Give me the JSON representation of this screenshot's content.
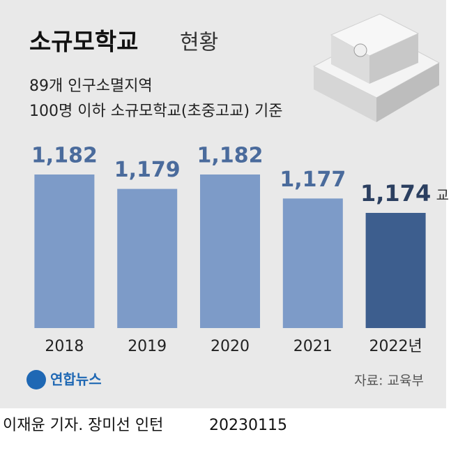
{
  "chart_data": {
    "type": "bar",
    "title": "소규모학교",
    "title_suffix": "현황",
    "subtitle": [
      "89개 인구소멸지역",
      "100명 이하 소규모학교(초중고교) 기준"
    ],
    "categories": [
      "2018",
      "2019",
      "2020",
      "2021",
      "2022년"
    ],
    "values": [
      1182,
      1179,
      1182,
      1177,
      1174
    ],
    "value_labels": [
      "1,182",
      "1,179",
      "1,182",
      "1,177",
      "1,174"
    ],
    "value_unit": "교",
    "colors": [
      "#7d9bc8",
      "#7d9bc8",
      "#7d9bc8",
      "#7d9bc8",
      "#3d5e8e"
    ],
    "ylim": [
      1150,
      1182
    ],
    "logo": "연합뉴스",
    "source": "자료: 교육부",
    "credit": "이재윤 기자. 장미선 인턴",
    "date": "20230115"
  }
}
